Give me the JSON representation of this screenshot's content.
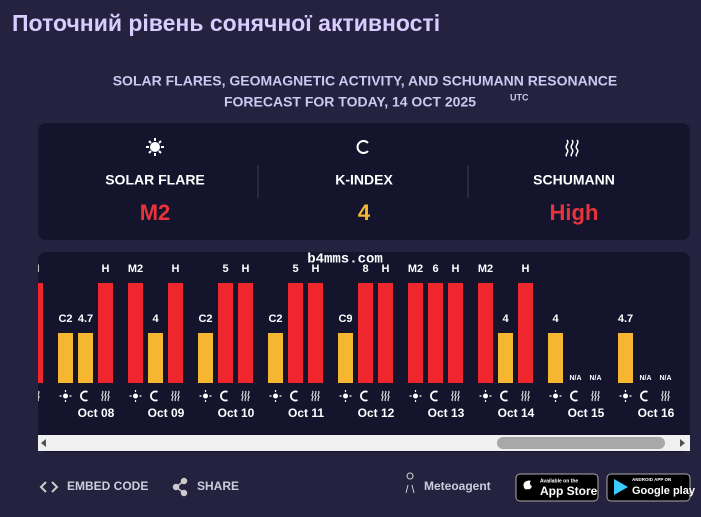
{
  "header": {
    "title": "Поточний рівень сонячної активності"
  },
  "subtitle": {
    "line1": "SOLAR FLARES, GEOMAGNETIC ACTIVITY, AND SCHUMANN RESONANCE",
    "line2": "FORECAST FOR TODAY, 14 OCT 2025",
    "utc": "UTC"
  },
  "summary": [
    {
      "label": "SOLAR FLARE",
      "value": "M2",
      "color": "#e8333a"
    },
    {
      "label": "K-INDEX",
      "value": "4",
      "color": "#f5b731"
    },
    {
      "label": "SCHUMANN",
      "value": "High",
      "color": "#e8333a"
    }
  ],
  "days": [
    {
      "date": null,
      "bars": [
        null,
        null,
        {
          "label": "H",
          "color": "#f0262e"
        }
      ]
    },
    {
      "date": "Oct 08",
      "bars": [
        {
          "label": "C2",
          "color": "#f5b731"
        },
        {
          "label": "4.7",
          "color": "#f5b731"
        },
        {
          "label": "H",
          "color": "#f0262e"
        }
      ]
    },
    {
      "date": "Oct 09",
      "bars": [
        {
          "label": "M2",
          "color": "#f0262e"
        },
        {
          "label": "4",
          "color": "#f5b731"
        },
        {
          "label": "H",
          "color": "#f0262e"
        }
      ]
    },
    {
      "date": "Oct 10",
      "bars": [
        {
          "label": "C2",
          "color": "#f5b731"
        },
        {
          "label": "5",
          "color": "#f0262e"
        },
        {
          "label": "H",
          "color": "#f0262e"
        }
      ]
    },
    {
      "date": "Oct 11",
      "bars": [
        {
          "label": "C2",
          "color": "#f5b731"
        },
        {
          "label": "5",
          "color": "#f0262e"
        },
        {
          "label": "H",
          "color": "#f0262e"
        }
      ]
    },
    {
      "date": "Oct 12",
      "bars": [
        {
          "label": "C9",
          "color": "#f5b731"
        },
        {
          "label": "8",
          "color": "#f0262e"
        },
        {
          "label": "H",
          "color": "#f0262e"
        }
      ]
    },
    {
      "date": "Oct 13",
      "bars": [
        {
          "label": "M2",
          "color": "#f0262e"
        },
        {
          "label": "6",
          "color": "#f0262e"
        },
        {
          "label": "H",
          "color": "#f0262e"
        }
      ]
    },
    {
      "date": "Oct 14",
      "bars": [
        {
          "label": "M2",
          "color": "#f0262e"
        },
        {
          "label": "4",
          "color": "#f5b731"
        },
        {
          "label": "H",
          "color": "#f0262e"
        }
      ]
    },
    {
      "date": "Oct 15",
      "bars": [
        {
          "label": "4",
          "color": "#f5b731"
        },
        {
          "label": "N/A"
        },
        {
          "label": "N/A"
        }
      ]
    },
    {
      "date": "Oct 16",
      "bars": [
        {
          "label": "4.7",
          "color": "#f5b731"
        },
        {
          "label": "N/A"
        },
        {
          "label": "N/A"
        }
      ]
    }
  ],
  "watermark": "b4mms.com",
  "footer": {
    "embed": "EMBED CODE",
    "share": "SHARE",
    "brand": "Meteoagent",
    "app_store_small": "Available on the",
    "app_store": "App Store",
    "google_small": "ANDROID APP ON",
    "google": "Google play"
  }
}
